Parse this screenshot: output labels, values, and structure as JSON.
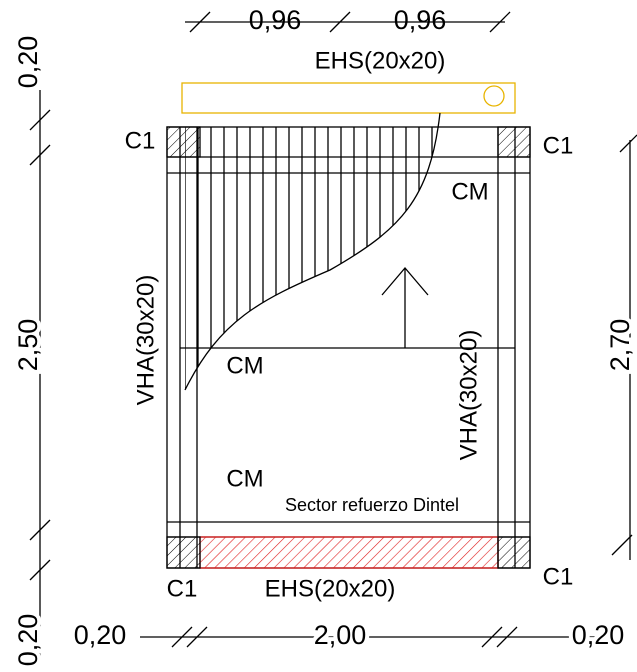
{
  "dimensions": {
    "top": [
      "0,96",
      "0,96"
    ],
    "left": [
      "0,20",
      "2,50",
      "0,20"
    ],
    "right": [
      "2,70"
    ],
    "bottom": [
      "0,20",
      "2,00",
      "0,20"
    ]
  },
  "labels": {
    "beam_top": "EHS(20x20)",
    "beam_bottom": "EHS(20x20)",
    "columns": [
      "C1",
      "C1",
      "C1",
      "C1"
    ],
    "ring_beams": [
      "CM",
      "CM",
      "CM"
    ],
    "walls": [
      "VHA(30x20)",
      "VHA(30x20)"
    ],
    "note": "Sector refuerzo Dintel"
  }
}
